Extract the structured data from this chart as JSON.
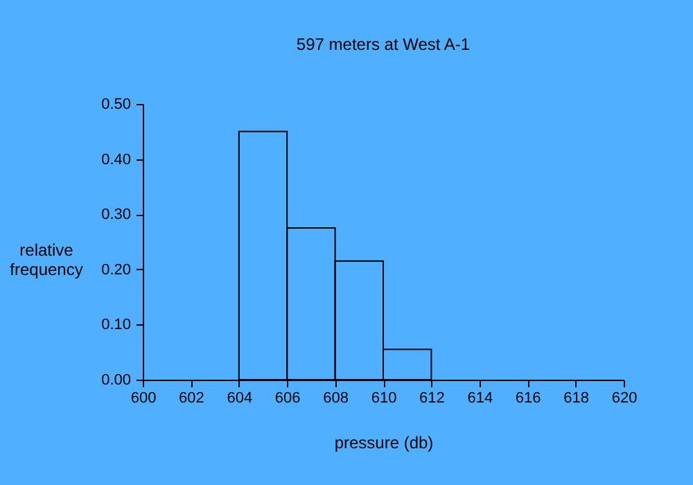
{
  "chart_data": {
    "type": "histogram",
    "title": "597 meters at West A-1",
    "xlabel": "pressure (db)",
    "ylabel": "relative frequency",
    "bins": [
      604,
      606,
      608,
      610,
      612
    ],
    "values": [
      0.45,
      0.275,
      0.215,
      0.055
    ],
    "color": "#000000",
    "xlim": [
      600,
      620
    ],
    "xticks": [
      600,
      602,
      604,
      606,
      608,
      610,
      612,
      614,
      616,
      618,
      620
    ],
    "ylim": [
      0,
      0.5
    ],
    "yticks": [
      {
        "value": 0,
        "label": "0.00"
      },
      {
        "value": 0.1,
        "label": "0.10"
      },
      {
        "value": 0.2,
        "label": "0.20"
      },
      {
        "value": 0.3,
        "label": "0.30"
      },
      {
        "value": 0.4,
        "label": "0.40"
      },
      {
        "value": 0.5,
        "label": "0.50"
      }
    ],
    "grid": false
  }
}
